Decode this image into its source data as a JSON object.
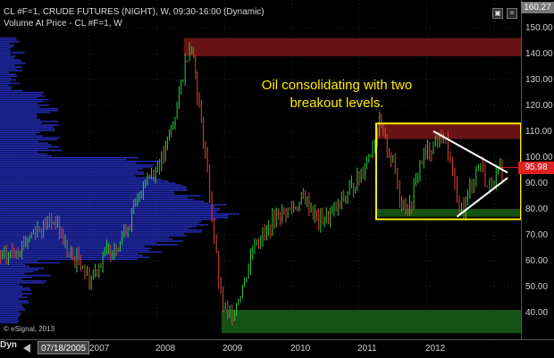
{
  "header": {
    "symbol_line": "CL #F=1, CRUDE FUTURES (NIGHT), W, 09:30-16:00 (Dynamic)",
    "study_line": "Volume At Price - CL #F=1, W"
  },
  "annotation": {
    "line1": "Oil consolidating with two",
    "line2": "breakout levels."
  },
  "price_axis": {
    "top_value": "160.27",
    "current_value": "95.98",
    "labels": [
      "150.00",
      "140.00",
      "130.00",
      "120.00",
      "110.00",
      "100.00",
      "90.00",
      "80.00",
      "70.00",
      "60.00",
      "50.00",
      "40.00"
    ]
  },
  "time_axis": {
    "labels": [
      "2007",
      "2008",
      "2009",
      "2010",
      "2011",
      "2012"
    ],
    "dyn_label": "Dyn",
    "date_box": "07/18/2005"
  },
  "copyright": "© eSignal, 2013",
  "colors": {
    "background": "#000000",
    "bull_candle": "#2ecc40",
    "bear_candle": "#e0443a",
    "volume_profile": "#2630c8",
    "resistance_zone": "#8b1a1a",
    "support_zone": "#1c6b1c",
    "highlight_box": "#ffeb00",
    "annotation_text": "#ffeb00",
    "trendline": "#ffffff"
  },
  "chart_data": {
    "type": "candlestick",
    "y_range": [
      30,
      160
    ],
    "price_series": [
      [
        2005.5,
        58
      ],
      [
        2005.8,
        62
      ],
      [
        2006.0,
        66
      ],
      [
        2006.2,
        72
      ],
      [
        2006.5,
        76
      ],
      [
        2006.7,
        62
      ],
      [
        2006.9,
        59
      ],
      [
        2007.0,
        52
      ],
      [
        2007.2,
        62
      ],
      [
        2007.4,
        66
      ],
      [
        2007.6,
        75
      ],
      [
        2007.8,
        90
      ],
      [
        2007.95,
        95
      ],
      [
        2008.1,
        100
      ],
      [
        2008.3,
        120
      ],
      [
        2008.45,
        140
      ],
      [
        2008.52,
        145
      ],
      [
        2008.6,
        125
      ],
      [
        2008.75,
        95
      ],
      [
        2008.85,
        68
      ],
      [
        2008.95,
        45
      ],
      [
        2009.05,
        38
      ],
      [
        2009.15,
        42
      ],
      [
        2009.3,
        52
      ],
      [
        2009.45,
        68
      ],
      [
        2009.6,
        70
      ],
      [
        2009.8,
        78
      ],
      [
        2010.0,
        80
      ],
      [
        2010.2,
        84
      ],
      [
        2010.4,
        75
      ],
      [
        2010.6,
        78
      ],
      [
        2010.8,
        85
      ],
      [
        2011.0,
        92
      ],
      [
        2011.2,
        105
      ],
      [
        2011.3,
        112
      ],
      [
        2011.5,
        98
      ],
      [
        2011.6,
        85
      ],
      [
        2011.75,
        80
      ],
      [
        2011.9,
        98
      ],
      [
        2012.1,
        105
      ],
      [
        2012.25,
        108
      ],
      [
        2012.35,
        98
      ],
      [
        2012.45,
        82
      ],
      [
        2012.55,
        80
      ],
      [
        2012.7,
        93
      ],
      [
        2012.8,
        98
      ],
      [
        2012.9,
        88
      ],
      [
        2013.0,
        92
      ],
      [
        2013.15,
        95.98
      ]
    ],
    "resistance_zones": [
      [
        139,
        146
      ],
      [
        107,
        113
      ]
    ],
    "support_zones": [
      [
        32,
        41
      ],
      [
        77,
        80
      ]
    ],
    "triangle_upper": [
      [
        2012.1,
        110
      ],
      [
        2013.2,
        94
      ]
    ],
    "triangle_lower": [
      [
        2012.45,
        77
      ],
      [
        2013.2,
        92
      ]
    ]
  }
}
